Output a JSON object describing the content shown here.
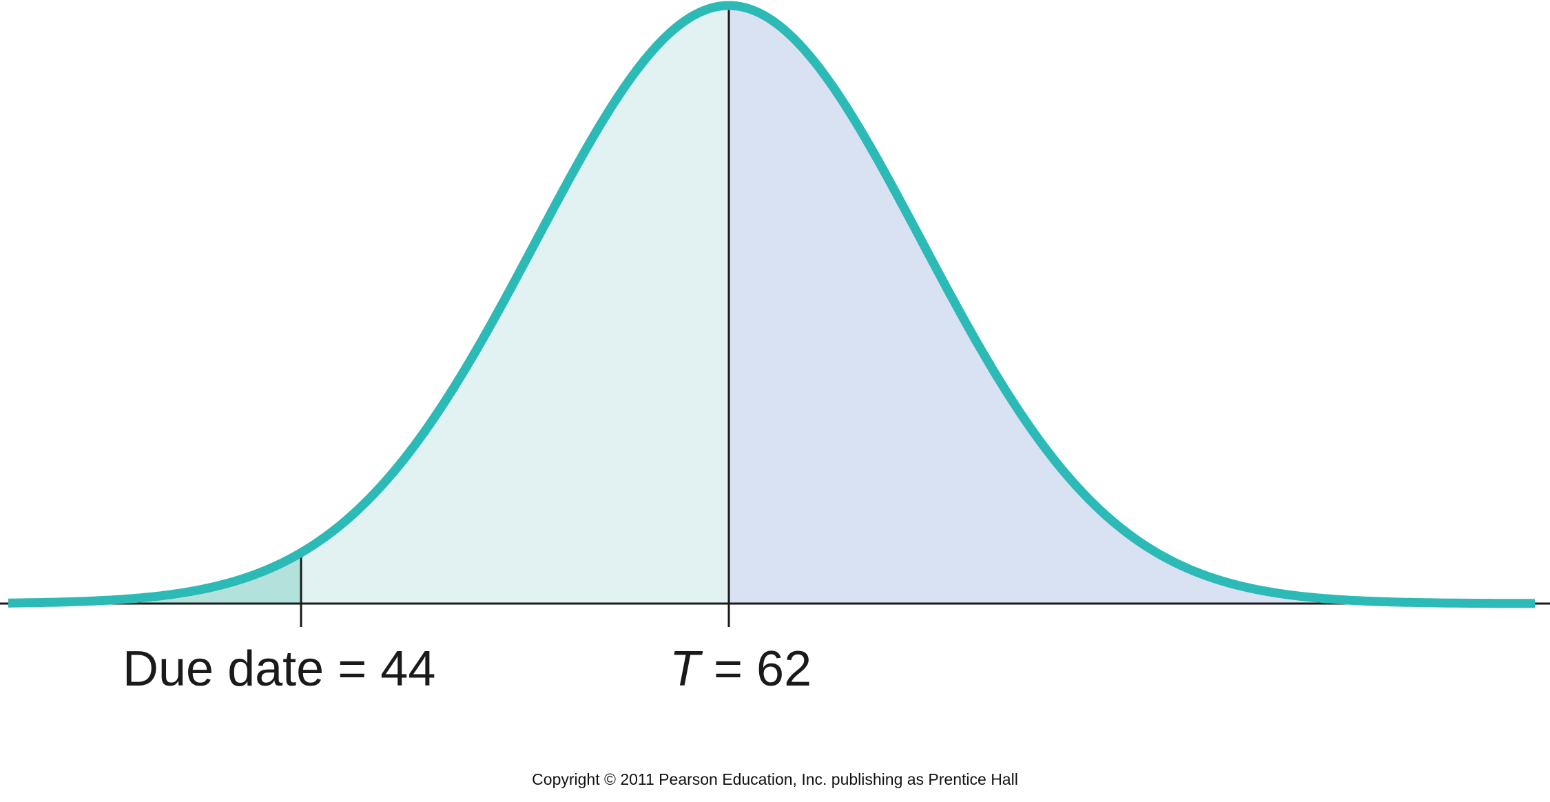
{
  "chart_data": {
    "type": "area",
    "distribution": "normal",
    "mean": 62,
    "due_date": 44,
    "markers": [
      {
        "value": 44,
        "label": "Due date = 44"
      },
      {
        "value": 62,
        "label_var": "T",
        "label_rest": " = 62"
      }
    ],
    "colors": {
      "curve": "#2bbab6",
      "left_tail_fill": "#b3e1db",
      "left_of_mean_fill": "#e2f2f3",
      "right_of_mean_fill": "#d8e2f2",
      "axis": "#1a1a1a"
    }
  },
  "copyright": "Copyright © 2011 Pearson Education, Inc. publishing as Prentice Hall"
}
